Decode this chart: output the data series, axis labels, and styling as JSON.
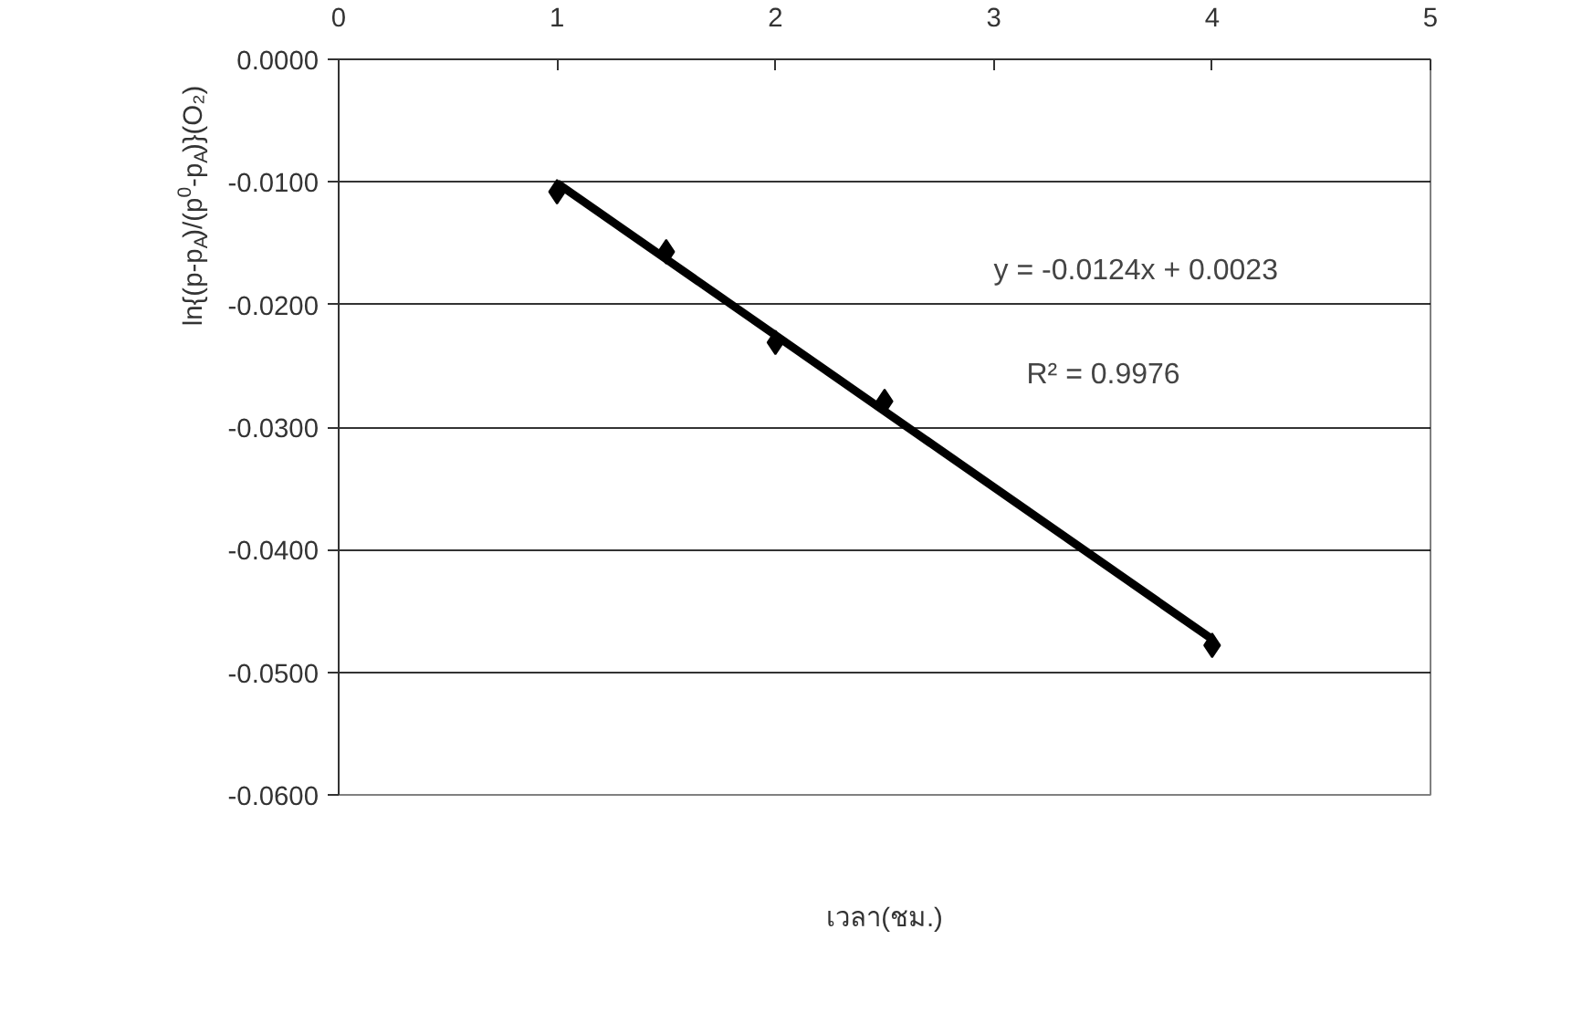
{
  "chart_data": {
    "type": "scatter",
    "xlabel": "เวลา(ชม.)",
    "ylabel": "ln{(p-p$_{A}$)/(p$^{0}$-p$_{A}$)}(O₂)",
    "xlim": [
      0,
      5
    ],
    "xticks": [
      0,
      1,
      2,
      3,
      4,
      5
    ],
    "ylim": [
      -0.06,
      0
    ],
    "yticks": [
      {
        "value": 0,
        "label": "0.0000"
      },
      {
        "value": -0.01,
        "label": "-0.0100"
      },
      {
        "value": -0.02,
        "label": "-0.0200"
      },
      {
        "value": -0.03,
        "label": "-0.0300"
      },
      {
        "value": -0.04,
        "label": "-0.0400"
      },
      {
        "value": -0.05,
        "label": "-0.0500"
      },
      {
        "value": -0.06,
        "label": "-0.0600"
      }
    ],
    "grid": "y",
    "marker": "diamond",
    "series": [
      {
        "color": "#000000",
        "x": [
          1,
          1.5,
          2,
          2.5,
          4
        ],
        "values": [
          -0.0108,
          -0.0157,
          -0.0231,
          -0.0279,
          -0.0478
        ]
      },
      {
        "type": "line",
        "color": "#000000",
        "x": [
          1,
          4
        ],
        "values": [
          -0.0101,
          -0.0473
        ],
        "marker": "none",
        "line_style": "solid"
      }
    ],
    "annotations": [
      "y = -0.0124x + 0.0023",
      "R² = 0.9976"
    ]
  }
}
